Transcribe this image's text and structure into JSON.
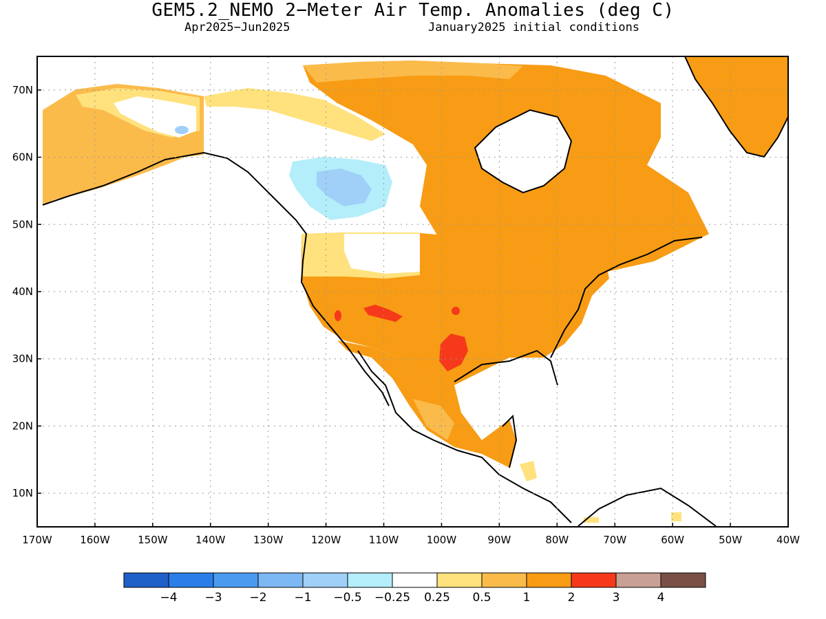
{
  "header": {
    "title": "GEM5.2_NEMO 2−Meter Air Temp. Anomalies (deg C)",
    "period": "Apr2025−Jun2025",
    "init": "January2025 initial conditions"
  },
  "axes": {
    "lat_ticks": [
      "70N",
      "60N",
      "50N",
      "40N",
      "30N",
      "20N",
      "10N"
    ],
    "lat_values": [
      70,
      60,
      50,
      40,
      30,
      20,
      10
    ],
    "lon_ticks": [
      "170W",
      "160W",
      "150W",
      "140W",
      "130W",
      "120W",
      "110W",
      "100W",
      "90W",
      "80W",
      "70W",
      "60W",
      "50W",
      "40W"
    ],
    "lon_values": [
      -170,
      -160,
      -150,
      -140,
      -130,
      -120,
      -110,
      -100,
      -90,
      -80,
      -70,
      -60,
      -50,
      -40
    ],
    "lon_range": [
      -170,
      -40
    ],
    "lat_range": [
      5,
      75
    ],
    "grid": "dotted"
  },
  "colorbar": {
    "colors": [
      "#1f5fc8",
      "#2b7de8",
      "#4a9bf0",
      "#7db8f5",
      "#a0d0f8",
      "#b4eefa",
      "#ffffff",
      "#ffe27d",
      "#fbbb4a",
      "#f79c14",
      "#f5391a",
      "#c8a094",
      "#7a5046"
    ],
    "labels": [
      "−4",
      "−3",
      "−2",
      "−1",
      "−0.5",
      "−0.25",
      "0.25",
      "0.5",
      "1",
      "2",
      "3",
      "4"
    ]
  },
  "palette": {
    "land_white": "#ffffff",
    "cool_light": "#b4eefa",
    "cool_mid": "#a0d0f8",
    "warm_pale": "#ffe27d",
    "warm_light": "#fbbb4a",
    "warm_mid": "#f79c14",
    "warm_hot": "#f5391a"
  }
}
